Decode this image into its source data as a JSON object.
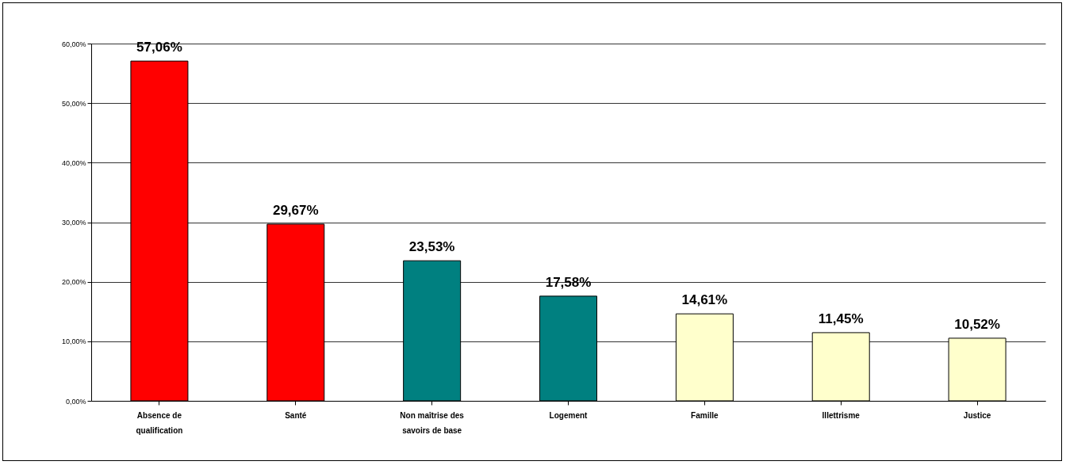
{
  "chart_data": {
    "type": "bar",
    "categories": [
      "Absence de qualification",
      "Santé",
      "Non maîtrise des savoirs de base",
      "Logement",
      "Famille",
      "Illettrisme",
      "Justice"
    ],
    "values": [
      57.06,
      29.67,
      23.53,
      17.58,
      14.61,
      11.45,
      10.52
    ],
    "colors": [
      "#ff0000",
      "#ff0000",
      "#008080",
      "#008080",
      "#ffffcc",
      "#ffffcc",
      "#ffffcc"
    ],
    "value_labels": [
      "57,06%",
      "29,67%",
      "23,53%",
      "17,58%",
      "14,61%",
      "11,45%",
      "10,52%"
    ],
    "ylim": [
      0,
      60
    ],
    "yticks": [
      {
        "value": 0,
        "label": "0,00%"
      },
      {
        "value": 10,
        "label": "10,00%"
      },
      {
        "value": 20,
        "label": "20,00%"
      },
      {
        "value": 30,
        "label": "30,00%"
      },
      {
        "value": 40,
        "label": "40,00%"
      },
      {
        "value": 50,
        "label": "50,00%"
      },
      {
        "value": 60,
        "label": "60,00%"
      }
    ],
    "grid": "y"
  }
}
